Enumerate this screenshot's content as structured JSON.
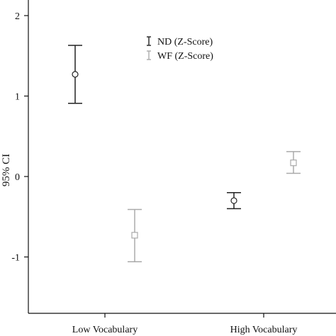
{
  "chart_data": {
    "type": "errorbar",
    "title": "",
    "xlabel": "",
    "ylabel": "95% CI",
    "ylim": [
      -1.7,
      2.1
    ],
    "yticks": [
      2,
      1,
      0,
      -1
    ],
    "yticklabels": [
      "2",
      "1",
      "0",
      "-1"
    ],
    "categories": [
      "Low Vocabulary",
      "High Vocabulary"
    ],
    "grid": false,
    "legend_position": "top-center",
    "series": [
      {
        "name": "ND (Z-Score)",
        "color": "#222222",
        "marker": "circle",
        "means": [
          1.27,
          -0.3
        ],
        "lower": [
          0.91,
          -0.4
        ],
        "upper": [
          1.63,
          -0.2
        ]
      },
      {
        "name": "WF (Z-Score)",
        "color": "#aaaaaa",
        "marker": "square",
        "means": [
          -0.73,
          0.17
        ],
        "lower": [
          -1.06,
          0.04
        ],
        "upper": [
          -0.41,
          0.31
        ]
      }
    ]
  }
}
